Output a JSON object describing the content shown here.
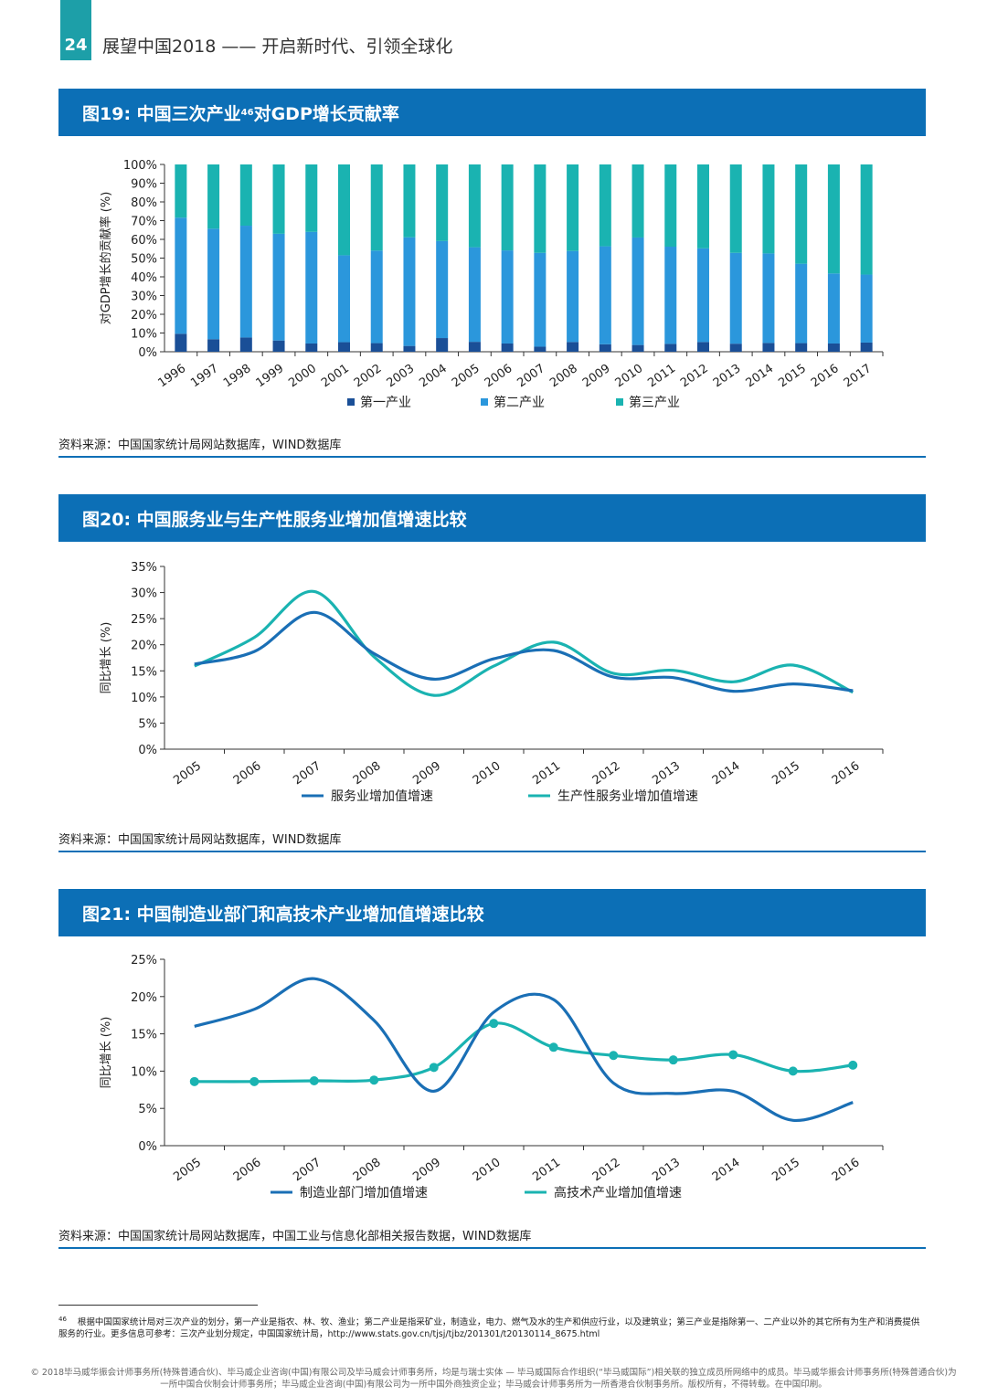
{
  "header": {
    "page_number": "24",
    "running_title": "展望中国2018 —— 开启新时代、引领全球化"
  },
  "colors": {
    "primary": "#0c6fb6",
    "secondary": "#1d9fa8",
    "dark": "#1a4f97",
    "mid": "#2b97dc",
    "teal": "#1ab3b1"
  },
  "figures": [
    {
      "title_main": "图19: 中国三次产业",
      "title_sup": "46",
      "title_rest": "对GDP增长贡献率",
      "source": "资料来源：中国国家统计局网站数据库，WIND数据库"
    },
    {
      "title_main": "图20: 中国服务业与生产性服务业增加值增速比较",
      "source": "资料来源：中国国家统计局网站数据库，WIND数据库"
    },
    {
      "title_main": "图21: 中国制造业部门和高技术产业增加值增速比较",
      "source": "资料来源：中国国家统计局网站数据库，中国工业与信息化部相关报告数据，WIND数据库"
    }
  ],
  "chart_data": [
    {
      "type": "bar",
      "stacked": true,
      "ylabel": "对GDP增长的贡献率 (%)",
      "ylim": [
        0,
        100
      ],
      "yticks": [
        "0%",
        "10%",
        "20%",
        "30%",
        "40%",
        "50%",
        "60%",
        "70%",
        "80%",
        "90%",
        "100%"
      ],
      "categories": [
        "1996",
        "1997",
        "1998",
        "1999",
        "2000",
        "2001",
        "2002",
        "2003",
        "2004",
        "2005",
        "2006",
        "2007",
        "2008",
        "2009",
        "2010",
        "2011",
        "2012",
        "2013",
        "2014",
        "2015",
        "2016",
        "2017"
      ],
      "series": [
        {
          "name": "第一产业",
          "color": "#1a4f97",
          "values": [
            9.6,
            6.7,
            7.6,
            6.0,
            4.4,
            5.1,
            4.6,
            3.1,
            7.3,
            5.3,
            4.4,
            2.7,
            5.2,
            4.0,
            3.6,
            4.2,
            5.2,
            4.3,
            4.7,
            4.6,
            4.4,
            4.9
          ]
        },
        {
          "name": "第二产业",
          "color": "#2b97dc",
          "values": [
            62.0,
            59.0,
            59.7,
            57.0,
            59.6,
            46.4,
            49.4,
            58.0,
            51.8,
            50.5,
            49.7,
            50.1,
            48.6,
            52.3,
            57.4,
            51.9,
            50.0,
            48.5,
            47.8,
            42.4,
            37.4,
            36.3
          ]
        },
        {
          "name": "第三产业",
          "color": "#1ab3b1",
          "values": [
            28.4,
            34.3,
            32.7,
            37.0,
            36.0,
            48.5,
            46.0,
            38.9,
            40.9,
            44.2,
            45.9,
            47.2,
            46.2,
            43.7,
            39.0,
            43.9,
            44.8,
            47.2,
            47.5,
            53.0,
            58.2,
            58.8
          ]
        }
      ]
    },
    {
      "type": "line",
      "ylabel": "同比增长 (%)",
      "ylim": [
        0,
        35
      ],
      "yticks": [
        "0%",
        "5%",
        "10%",
        "15%",
        "20%",
        "25%",
        "30%",
        "35%"
      ],
      "categories": [
        "2005",
        "2006",
        "2007",
        "2008",
        "2009",
        "2010",
        "2011",
        "2012",
        "2013",
        "2014",
        "2015",
        "2016"
      ],
      "series": [
        {
          "name": "服务业增加值增速",
          "color": "#1a6fb5",
          "values": [
            16.3,
            18.7,
            26.2,
            18.3,
            13.4,
            17.3,
            18.9,
            13.8,
            13.7,
            11.1,
            12.5,
            11.2
          ]
        },
        {
          "name": "生产性服务业增加值增速",
          "color": "#1ab3b1",
          "values": [
            15.9,
            21.4,
            30.2,
            17.7,
            10.3,
            15.9,
            20.5,
            14.5,
            15.1,
            12.9,
            16.1,
            10.9
          ]
        }
      ]
    },
    {
      "type": "line",
      "ylabel": "同比增长 (%)",
      "ylim": [
        0,
        25
      ],
      "yticks": [
        "0%",
        "5%",
        "10%",
        "15%",
        "20%",
        "25%"
      ],
      "categories": [
        "2005",
        "2006",
        "2007",
        "2008",
        "2009",
        "2010",
        "2011",
        "2012",
        "2013",
        "2014",
        "2015",
        "2016"
      ],
      "series": [
        {
          "name": "制造业部门增加值增速",
          "color": "#1a6fb5",
          "markers": false,
          "values": [
            16.0,
            18.3,
            22.4,
            16.8,
            7.3,
            17.9,
            19.6,
            8.4,
            7.0,
            7.3,
            3.4,
            5.8
          ]
        },
        {
          "name": "高技术产业增加值增速",
          "color": "#1ab3b1",
          "markers": true,
          "values": [
            8.6,
            8.6,
            8.7,
            8.8,
            10.5,
            16.4,
            13.2,
            12.1,
            11.5,
            12.2,
            10.0,
            10.8
          ]
        }
      ]
    }
  ],
  "footnote": {
    "marker": "46",
    "text": "根据中国国家统计局对三次产业的划分，第一产业是指农、林、牧、渔业；第二产业是指采矿业，制造业，电力、燃气及水的生产和供应行业，以及建筑业；第三产业是指除第一、二产业以外的其它所有为生产和消费提供服务的行业。更多信息可参考：三次产业划分规定，中国国家统计局，http://www.stats.gov.cn/tjsj/tjbz/201301/t20130114_8675.html"
  },
  "copyright": "© 2018毕马威华振会计师事务所(特殊普通合伙)、毕马威企业咨询(中国)有限公司及毕马威会计师事务所，均是与瑞士实体 — 毕马威国际合作组织(“毕马威国际”)相关联的独立成员所网络中的成员。毕马威华振会计师事务所(特殊普通合伙)为一所中国合伙制会计师事务所；毕马威企业咨询(中国)有限公司为一所中国外商独资企业；毕马威会计师事务所为一所香港合伙制事务所。版权所有，不得转载。在中国印刷。"
}
